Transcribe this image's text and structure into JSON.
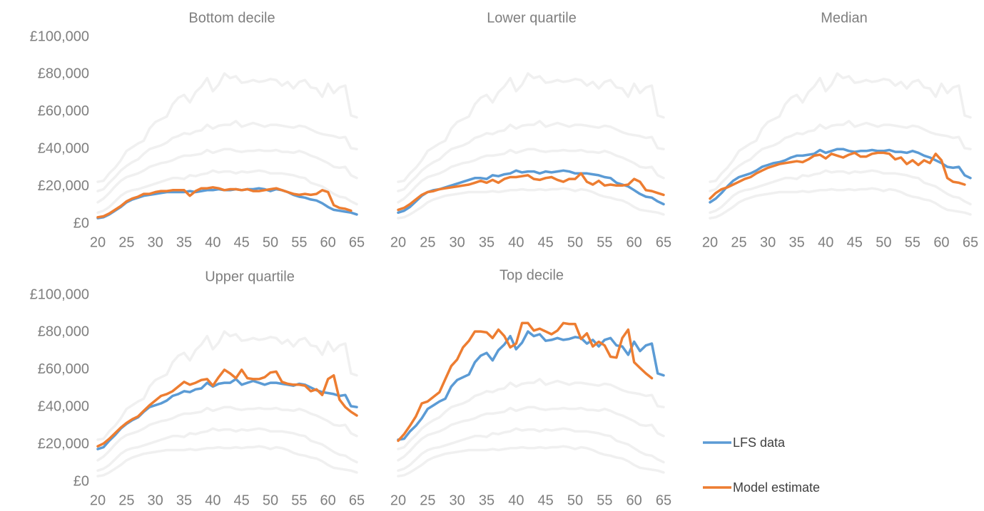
{
  "chart_data": [
    {
      "type": "line",
      "title": "Bottom decile",
      "x": [
        20,
        21,
        22,
        23,
        24,
        25,
        26,
        27,
        28,
        29,
        30,
        31,
        32,
        33,
        34,
        35,
        36,
        37,
        38,
        39,
        40,
        41,
        42,
        43,
        44,
        45,
        46,
        47,
        48,
        49,
        50,
        51,
        52,
        53,
        54,
        55,
        56,
        57,
        58,
        59,
        60,
        61,
        62,
        63,
        64,
        65
      ],
      "xlim": [
        20,
        65
      ],
      "xticks": [
        20,
        25,
        30,
        35,
        40,
        45,
        50,
        55,
        60,
        65
      ],
      "ylim": [
        0,
        100000
      ],
      "yticks": [
        {
          "value": 0,
          "label": "£0"
        },
        {
          "value": 20000,
          "label": "£20,000"
        },
        {
          "value": 40000,
          "label": "£40,000"
        },
        {
          "value": 60000,
          "label": "£60,000"
        },
        {
          "value": 80000,
          "label": "£80,000"
        },
        {
          "value": 100000,
          "label": "£100,000"
        }
      ],
      "series": [
        {
          "name": "LFS data",
          "color": "#5b9bd5",
          "values": [
            3000,
            3500,
            5000,
            7000,
            9000,
            11500,
            13000,
            14000,
            15000,
            15500,
            16000,
            16500,
            17000,
            17000,
            17000,
            17000,
            17500,
            17000,
            17500,
            18000,
            18000,
            18500,
            18000,
            18000,
            18500,
            18000,
            18500,
            18500,
            19000,
            18500,
            17500,
            18500,
            18000,
            17000,
            15500,
            14500,
            14000,
            13000,
            12500,
            11000,
            9000,
            7500,
            7000,
            6500,
            6000,
            5000
          ]
        },
        {
          "name": "Model estimate",
          "color": "#ed7d31",
          "values": [
            3500,
            4000,
            5500,
            7500,
            9500,
            12000,
            13500,
            14500,
            16000,
            16000,
            17000,
            17500,
            17500,
            18000,
            18000,
            18000,
            15000,
            17500,
            19000,
            19000,
            19500,
            19000,
            18000,
            18500,
            18500,
            18000,
            18500,
            17500,
            17500,
            18000,
            18500,
            19000,
            18000,
            17000,
            16000,
            15500,
            16000,
            15500,
            16000,
            18000,
            17000,
            10000,
            8500,
            8000,
            7000,
            null
          ]
        }
      ]
    },
    {
      "type": "line",
      "title": "Lower quartile",
      "x": [
        20,
        21,
        22,
        23,
        24,
        25,
        26,
        27,
        28,
        29,
        30,
        31,
        32,
        33,
        34,
        35,
        36,
        37,
        38,
        39,
        40,
        41,
        42,
        43,
        44,
        45,
        46,
        47,
        48,
        49,
        50,
        51,
        52,
        53,
        54,
        55,
        56,
        57,
        58,
        59,
        60,
        61,
        62,
        63,
        64,
        65
      ],
      "xlim": [
        20,
        65
      ],
      "xticks": [
        20,
        25,
        30,
        35,
        40,
        45,
        50,
        55,
        60,
        65
      ],
      "ylim": [
        0,
        100000
      ],
      "series": [
        {
          "name": "LFS data",
          "color": "#5b9bd5",
          "values": [
            6000,
            7000,
            9000,
            12000,
            15000,
            17000,
            18000,
            18500,
            19500,
            20500,
            21500,
            22500,
            23500,
            24500,
            24500,
            24000,
            26000,
            25500,
            26500,
            27000,
            28500,
            27500,
            28000,
            28000,
            27000,
            28000,
            27500,
            28000,
            28500,
            28000,
            27000,
            27000,
            27000,
            26500,
            26000,
            25000,
            24500,
            22000,
            21000,
            20000,
            18000,
            16000,
            14500,
            14000,
            12000,
            10500
          ]
        },
        {
          "name": "Model estimate",
          "color": "#ed7d31",
          "values": [
            7500,
            8500,
            10500,
            13000,
            15500,
            17000,
            17500,
            18500,
            19000,
            19500,
            20000,
            20500,
            21000,
            22000,
            23000,
            22000,
            23500,
            22000,
            24000,
            25000,
            25000,
            25500,
            26000,
            24000,
            23500,
            24500,
            25000,
            23500,
            22500,
            24000,
            24000,
            27000,
            22500,
            21000,
            23000,
            20500,
            21000,
            20500,
            20500,
            21000,
            24000,
            22500,
            18000,
            17500,
            16500,
            15500
          ]
        }
      ]
    },
    {
      "type": "line",
      "title": "Median",
      "x": [
        20,
        21,
        22,
        23,
        24,
        25,
        26,
        27,
        28,
        29,
        30,
        31,
        32,
        33,
        34,
        35,
        36,
        37,
        38,
        39,
        40,
        41,
        42,
        43,
        44,
        45,
        46,
        47,
        48,
        49,
        50,
        51,
        52,
        53,
        54,
        55,
        56,
        57,
        58,
        59,
        60,
        61,
        62,
        63,
        64,
        65
      ],
      "xlim": [
        20,
        65
      ],
      "xticks": [
        20,
        25,
        30,
        35,
        40,
        45,
        50,
        55,
        60,
        65
      ],
      "ylim": [
        0,
        100000
      ],
      "series": [
        {
          "name": "LFS data",
          "color": "#5b9bd5",
          "values": [
            11500,
            13500,
            16500,
            20000,
            23000,
            25000,
            26000,
            27000,
            28500,
            30500,
            31500,
            32500,
            33000,
            34000,
            35500,
            36500,
            36500,
            37000,
            37500,
            39500,
            38000,
            39000,
            40000,
            40000,
            39000,
            38500,
            39000,
            39000,
            39500,
            39000,
            39000,
            39500,
            38500,
            38500,
            38000,
            39000,
            38000,
            36500,
            35500,
            34000,
            32500,
            30500,
            30000,
            30500,
            26000,
            24500
          ]
        },
        {
          "name": "Model estimate",
          "color": "#ed7d31",
          "values": [
            13500,
            16500,
            18500,
            19500,
            21000,
            22500,
            24000,
            25000,
            27000,
            28500,
            30000,
            31000,
            32000,
            32500,
            33000,
            33500,
            33000,
            34500,
            36500,
            37000,
            35000,
            37500,
            36500,
            35500,
            37000,
            38000,
            36000,
            36000,
            37500,
            38000,
            38000,
            37500,
            34500,
            35500,
            32000,
            34000,
            31500,
            34000,
            32500,
            37500,
            34000,
            24500,
            22500,
            22000,
            21000,
            null
          ]
        }
      ]
    },
    {
      "type": "line",
      "title": "Upper quartile",
      "x": [
        20,
        21,
        22,
        23,
        24,
        25,
        26,
        27,
        28,
        29,
        30,
        31,
        32,
        33,
        34,
        35,
        36,
        37,
        38,
        39,
        40,
        41,
        42,
        43,
        44,
        45,
        46,
        47,
        48,
        49,
        50,
        51,
        52,
        53,
        54,
        55,
        56,
        57,
        58,
        59,
        60,
        61,
        62,
        63,
        64,
        65
      ],
      "xlim": [
        20,
        65
      ],
      "xticks": [
        20,
        25,
        30,
        35,
        40,
        45,
        50,
        55,
        60,
        65
      ],
      "ylim": [
        0,
        100000
      ],
      "yticks": [
        {
          "value": 0,
          "label": "£0"
        },
        {
          "value": 20000,
          "label": "£20,000"
        },
        {
          "value": 40000,
          "label": "£40,000"
        },
        {
          "value": 60000,
          "label": "£60,000"
        },
        {
          "value": 80000,
          "label": "£80,000"
        },
        {
          "value": 100000,
          "label": "£100,000"
        }
      ],
      "series": [
        {
          "name": "LFS data",
          "color": "#5b9bd5",
          "values": [
            17500,
            18500,
            22000,
            25000,
            28500,
            31000,
            33000,
            34500,
            37500,
            40000,
            41000,
            42000,
            43500,
            46000,
            47000,
            48500,
            48000,
            49500,
            50000,
            53000,
            51000,
            52500,
            53000,
            53000,
            55000,
            52000,
            53000,
            54000,
            53000,
            52000,
            53000,
            53000,
            52500,
            52000,
            51500,
            52500,
            52000,
            50500,
            49000,
            48000,
            47500,
            47000,
            46000,
            46500,
            40500,
            40000
          ]
        },
        {
          "name": "Model estimate",
          "color": "#ed7d31",
          "values": [
            19000,
            20500,
            23000,
            26000,
            29000,
            31500,
            33500,
            35000,
            38000,
            41000,
            43500,
            46000,
            47000,
            48500,
            51000,
            53500,
            52000,
            53000,
            54500,
            55000,
            51500,
            56000,
            60000,
            58000,
            55500,
            60000,
            55500,
            55000,
            55000,
            56000,
            58500,
            59000,
            53500,
            52500,
            52000,
            52000,
            51500,
            48500,
            49500,
            46500,
            55000,
            57000,
            44000,
            40000,
            37500,
            35500
          ]
        }
      ]
    },
    {
      "type": "line",
      "title": "Top decile",
      "x": [
        20,
        21,
        22,
        23,
        24,
        25,
        26,
        27,
        28,
        29,
        30,
        31,
        32,
        33,
        34,
        35,
        36,
        37,
        38,
        39,
        40,
        41,
        42,
        43,
        44,
        45,
        46,
        47,
        48,
        49,
        50,
        51,
        52,
        53,
        54,
        55,
        56,
        57,
        58,
        59,
        60,
        61,
        62,
        63,
        64,
        65
      ],
      "xlim": [
        20,
        65
      ],
      "xticks": [
        20,
        25,
        30,
        35,
        40,
        45,
        50,
        55,
        60,
        65
      ],
      "ylim": [
        0,
        100000
      ],
      "series": [
        {
          "name": "LFS data",
          "color": "#5b9bd5",
          "values": [
            22500,
            23000,
            27000,
            30000,
            34000,
            39000,
            41000,
            43000,
            44500,
            51000,
            54500,
            56000,
            57500,
            64000,
            67500,
            69000,
            65000,
            70500,
            73500,
            78000,
            71000,
            74500,
            80500,
            78000,
            79000,
            75500,
            76000,
            77000,
            76000,
            76500,
            77500,
            77000,
            74000,
            76000,
            72500,
            76000,
            77000,
            73000,
            72500,
            68000,
            75000,
            70000,
            73000,
            74000,
            58000,
            57000
          ]
        },
        {
          "name": "Model estimate",
          "color": "#ed7d31",
          "values": [
            22000,
            25500,
            30000,
            35000,
            42000,
            43000,
            45500,
            48000,
            55000,
            62000,
            65500,
            72000,
            75500,
            80500,
            80500,
            80000,
            77000,
            81500,
            78000,
            72000,
            74000,
            85000,
            85000,
            81000,
            82000,
            80500,
            79000,
            81000,
            85000,
            84500,
            84500,
            76500,
            79500,
            72500,
            75000,
            73000,
            67000,
            66500,
            77000,
            81500,
            64000,
            61000,
            58000,
            55500,
            null,
            null
          ]
        }
      ]
    }
  ]
}
